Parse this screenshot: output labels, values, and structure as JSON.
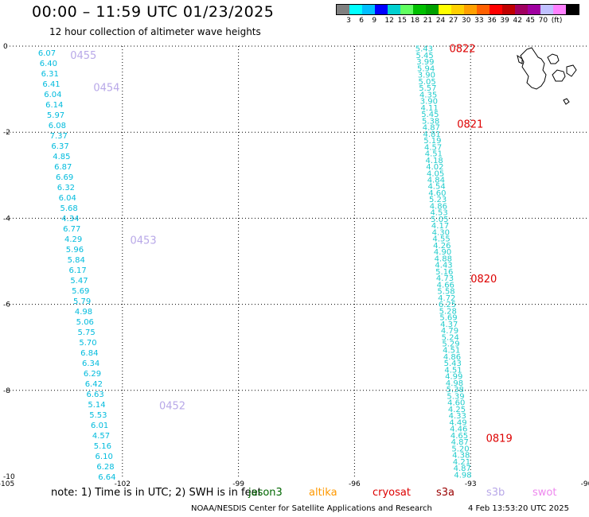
{
  "title": "00:00 – 11:59 UTC 01/23/2025",
  "subtitle": "12 hour collection of altimeter wave heights",
  "legend": {
    "colors": [
      "#808080",
      "#00ffff",
      "#00bfff",
      "#0000ff",
      "#00d0d0",
      "#60ff60",
      "#00c000",
      "#00a000",
      "#ffff00",
      "#ffd000",
      "#ffa000",
      "#ff6000",
      "#ff0000",
      "#c00000",
      "#a00060",
      "#a000a0",
      "#c0c0ff",
      "#ff80ff",
      "#000000"
    ],
    "labels": [
      "3",
      "6",
      "9",
      "12",
      "15",
      "18",
      "21",
      "24",
      "27",
      "30",
      "33",
      "36",
      "39",
      "42",
      "45",
      "70",
      "(ft)"
    ]
  },
  "axes": {
    "x_ticks": [
      "-105",
      "-102",
      "-99",
      "-96",
      "-93",
      "-90"
    ],
    "y_ticks": [
      "0",
      "-2",
      "-4",
      "-6",
      "-8",
      "-10"
    ]
  },
  "tracks": [
    {
      "color": "#00bbdd",
      "start": [
        -103.95,
        -0.15
      ],
      "end": [
        -102.4,
        -10.0
      ],
      "values": [
        "6.07",
        "6.40",
        "6.31",
        "6.41",
        "6.04",
        "6.14",
        "5.97",
        "6.08",
        "7.37",
        "6.37",
        "4.85",
        "6.87",
        "6.69",
        "6.32",
        "6.04",
        "5.68",
        "4.34",
        "6.77",
        "4.29",
        "5.96",
        "5.84",
        "6.17",
        "5.47",
        "5.69",
        "5.79",
        "4.98",
        "5.06",
        "5.75",
        "5.70",
        "6.84",
        "6.34",
        "6.29",
        "6.42",
        "6.63",
        "5.14",
        "5.53",
        "6.01",
        "4.57",
        "5.16",
        "6.10",
        "6.28",
        "6.64"
      ]
    },
    {
      "color": "#22cccc",
      "start": [
        -94.2,
        -0.05
      ],
      "end": [
        -93.2,
        -9.95
      ],
      "values": [
        "5.43",
        "5.45",
        "3.99",
        "5.94",
        "3.90",
        "5.05",
        "5.57",
        "4.35",
        "3.90",
        "4.11",
        "5.45",
        "5.38",
        "4.87",
        "4.81",
        "5.19",
        "4.57",
        "4.51",
        "4.18",
        "4.02",
        "4.05",
        "4.84",
        "4.54",
        "4.60",
        "5.23",
        "4.86",
        "4.53",
        "5.05",
        "4.17",
        "4.30",
        "4.55",
        "4.26",
        "4.90",
        "4.88",
        "4.43",
        "5.16",
        "4.73",
        "4.66",
        "5.58",
        "4.72",
        "6.25",
        "5.28",
        "5.69",
        "4.37",
        "4.79",
        "5.24",
        "5.29",
        "4.51",
        "4.86",
        "5.43",
        "4.51",
        "4.99",
        "4.98",
        "5.38",
        "5.39",
        "4.60",
        "4.25",
        "4.33",
        "4.49",
        "4.46",
        "4.65",
        "4.87",
        "5.20",
        "4.38",
        "4.21",
        "4.87",
        "4.98"
      ]
    }
  ],
  "time_labels": [
    {
      "text": "0455",
      "lon": -103.35,
      "lat": -0.2,
      "color": "#b8a8e8"
    },
    {
      "text": "0454",
      "lon": -102.75,
      "lat": -0.95,
      "color": "#b8a8e8"
    },
    {
      "text": "0453",
      "lon": -101.8,
      "lat": -4.5,
      "color": "#b8a8e8"
    },
    {
      "text": "0452",
      "lon": -101.05,
      "lat": -8.35,
      "color": "#b8a8e8"
    },
    {
      "text": "0822",
      "lon": -93.55,
      "lat": -0.05,
      "color": "#dd0000"
    },
    {
      "text": "0821",
      "lon": -93.35,
      "lat": -1.8,
      "color": "#dd0000"
    },
    {
      "text": "0820",
      "lon": -93.0,
      "lat": -5.4,
      "color": "#dd0000"
    },
    {
      "text": "0819",
      "lon": -92.6,
      "lat": -9.1,
      "color": "#dd0000"
    }
  ],
  "note": "note:  1) Time is in UTC; 2) SWH is in feet",
  "satellites": [
    {
      "name": "jason3",
      "color": "#006600"
    },
    {
      "name": "altika",
      "color": "#ff9900"
    },
    {
      "name": "cryosat",
      "color": "#dd0000"
    },
    {
      "name": "s3a",
      "color": "#990000"
    },
    {
      "name": "s3b",
      "color": "#b8a8e8"
    },
    {
      "name": "swot",
      "color": "#ee88ee"
    }
  ],
  "credit": "NOAA/NESDIS Center for Satellite Applications and Research",
  "timestamp": "4 Feb 13:53:20 UTC 2025"
}
